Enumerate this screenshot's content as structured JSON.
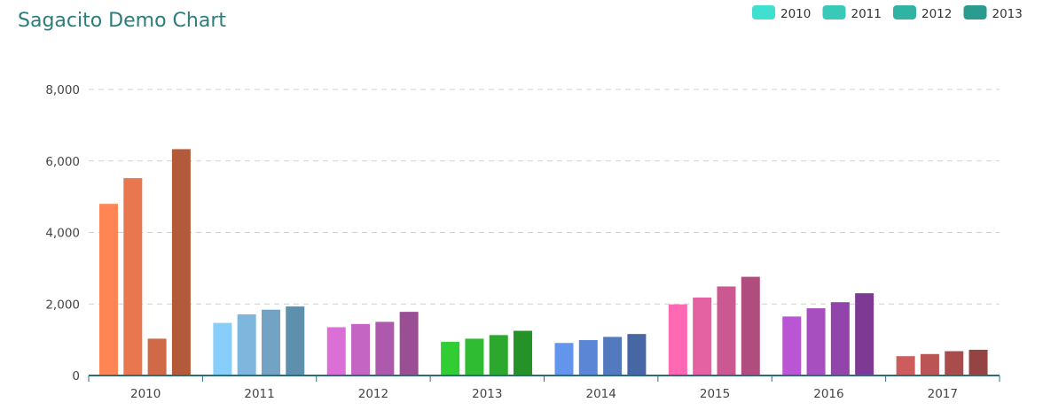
{
  "chart_data": {
    "type": "bar",
    "title": "Sagacito Demo Chart",
    "xlabel": "",
    "ylabel": "",
    "ylim": [
      0,
      8000
    ],
    "yticks": [
      0,
      2000,
      4000,
      6000,
      8000
    ],
    "ytick_labels": [
      "0",
      "2,000",
      "4,000",
      "6,000",
      "8,000"
    ],
    "grid": true,
    "legend_position": "top-right",
    "categories": [
      "2010",
      "2011",
      "2012",
      "2013",
      "2014",
      "2015",
      "2016",
      "2017"
    ],
    "series": [
      {
        "name": "2010",
        "color": "#3fe0d0",
        "values": [
          4800,
          1470,
          1350,
          940,
          910,
          1990,
          1650,
          540
        ]
      },
      {
        "name": "2011",
        "color": "#39c9b8",
        "values": [
          5520,
          1710,
          1440,
          1030,
          990,
          2180,
          1880,
          600
        ]
      },
      {
        "name": "2012",
        "color": "#30b3a4",
        "values": [
          1030,
          1840,
          1500,
          1130,
          1080,
          2490,
          2050,
          680
        ]
      },
      {
        "name": "2013",
        "color": "#2a9b8e",
        "values": [
          6330,
          1930,
          1780,
          1250,
          1160,
          2760,
          2300,
          720
        ]
      }
    ],
    "bar_colors": [
      [
        "#ff8554",
        "#e8764e",
        "#d06a46",
        "#b35a3a"
      ],
      [
        "#87cefa",
        "#7eb6de",
        "#72a2c4",
        "#5e8fad"
      ],
      [
        "#da70d6",
        "#c465c4",
        "#ae5aac",
        "#9a4f94"
      ],
      [
        "#32cd32",
        "#2fbc32",
        "#2ba82d",
        "#259227"
      ],
      [
        "#6495ed",
        "#5b86d6",
        "#5379bf",
        "#4767a4"
      ],
      [
        "#ff69b4",
        "#e461a2",
        "#cc5892",
        "#b04c7e"
      ],
      [
        "#ba55d3",
        "#a84fc0",
        "#9244aa",
        "#7c3a94"
      ],
      [
        "#cd5c5c",
        "#bb5555",
        "#a84c4c",
        "#954444"
      ]
    ]
  }
}
